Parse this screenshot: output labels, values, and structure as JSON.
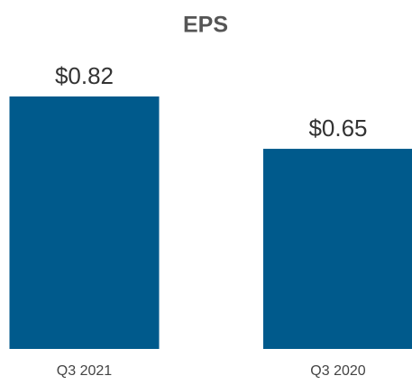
{
  "chart_data": {
    "type": "bar",
    "title": "EPS",
    "categories": [
      "Q3 2021",
      "Q3 2020"
    ],
    "values": [
      0.82,
      0.65
    ],
    "value_labels": [
      "$0.82",
      "$0.65"
    ],
    "color": "#005a8c"
  }
}
